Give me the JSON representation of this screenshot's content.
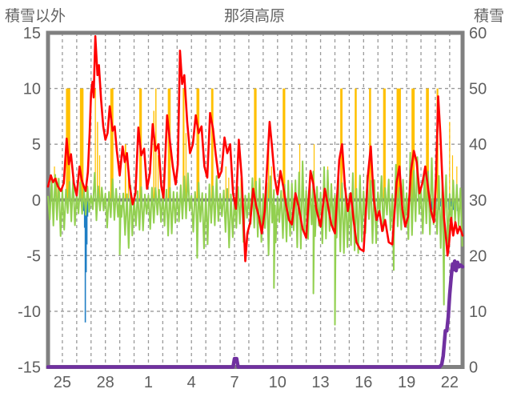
{
  "header": {
    "left_axis_title": "積雪以外",
    "title": "那須高原",
    "right_axis_title": "積雪"
  },
  "colors": {
    "red_line": "#FF0000",
    "green_line": "#92D050",
    "orange_bars": "#FFC000",
    "blue_bars": "#1F7EC4",
    "snow_depth_line": "#7030A0",
    "border": "#808080",
    "zero_line": "#808080",
    "grid": "#9A9A9A",
    "text": "#5F5F5F",
    "background": "#FFFFFF"
  },
  "chart_data": {
    "type": "line",
    "title": "那須高原",
    "left_axis": {
      "label": "積雪以外",
      "min": -15,
      "max": 15,
      "ticks": [
        15,
        10,
        5,
        0,
        -5,
        -10,
        -15
      ]
    },
    "right_axis": {
      "label": "積雪",
      "min": 0,
      "max": 60,
      "ticks": [
        60,
        50,
        40,
        30,
        20,
        10,
        0
      ]
    },
    "x_axis": {
      "tick_labels": [
        "25",
        "28",
        "1",
        "4",
        "7",
        "10",
        "13",
        "16",
        "19",
        "22"
      ],
      "tick_days": [
        1,
        4,
        7,
        10,
        13,
        16,
        19,
        22,
        25,
        28
      ],
      "span_days": 28.9,
      "gridline_every_day": true
    },
    "grid": "dashed gray: vertical each day, horizontal at ±5 and ±10 (left axis); solid gray zero line",
    "legend": "none",
    "series": [
      {
        "name": "red_line",
        "type": "line",
        "axis": "left",
        "color": "#FF0000",
        "points": [
          [
            0,
            1.2
          ],
          [
            0.2,
            2.2
          ],
          [
            0.35,
            1.6
          ],
          [
            0.5,
            1.9
          ],
          [
            0.7,
            1.2
          ],
          [
            0.9,
            0.8
          ],
          [
            1.1,
            1.5
          ],
          [
            1.3,
            5.5
          ],
          [
            1.45,
            3.2
          ],
          [
            1.6,
            4.1
          ],
          [
            1.8,
            1.5
          ],
          [
            2.0,
            0.4
          ],
          [
            2.2,
            3.0
          ],
          [
            2.35,
            1.8
          ],
          [
            2.5,
            1.2
          ],
          [
            2.62,
            0.8
          ],
          [
            2.78,
            2.5
          ],
          [
            2.9,
            6.0
          ],
          [
            3.0,
            9.6
          ],
          [
            3.1,
            10.6
          ],
          [
            3.18,
            9.2
          ],
          [
            3.3,
            14.7
          ],
          [
            3.45,
            11.2
          ],
          [
            3.55,
            12.1
          ],
          [
            3.7,
            9.0
          ],
          [
            3.85,
            6.6
          ],
          [
            4.0,
            5.4
          ],
          [
            4.15,
            6.0
          ],
          [
            4.3,
            8.4
          ],
          [
            4.5,
            6.2
          ],
          [
            4.65,
            6.6
          ],
          [
            4.8,
            4.4
          ],
          [
            5.0,
            2.2
          ],
          [
            5.2,
            4.8
          ],
          [
            5.35,
            3.4
          ],
          [
            5.5,
            4.2
          ],
          [
            5.7,
            1.2
          ],
          [
            5.9,
            -0.4
          ],
          [
            6.1,
            0.6
          ],
          [
            6.3,
            6.5
          ],
          [
            6.5,
            4.0
          ],
          [
            6.7,
            4.6
          ],
          [
            6.9,
            1.0
          ],
          [
            7.1,
            2.4
          ],
          [
            7.3,
            6.8
          ],
          [
            7.5,
            4.4
          ],
          [
            7.7,
            5.0
          ],
          [
            7.9,
            1.2
          ],
          [
            8.05,
            0.2
          ],
          [
            8.3,
            7.6
          ],
          [
            8.5,
            5.2
          ],
          [
            8.7,
            3.0
          ],
          [
            8.9,
            1.4
          ],
          [
            9.05,
            3.2
          ],
          [
            9.2,
            13.4
          ],
          [
            9.35,
            10.4
          ],
          [
            9.5,
            11.2
          ],
          [
            9.7,
            7.0
          ],
          [
            9.9,
            4.2
          ],
          [
            10.1,
            5.0
          ],
          [
            10.3,
            7.6
          ],
          [
            10.5,
            6.0
          ],
          [
            10.7,
            6.6
          ],
          [
            10.9,
            3.0
          ],
          [
            11.1,
            2.0
          ],
          [
            11.3,
            7.8
          ],
          [
            11.5,
            6.4
          ],
          [
            11.7,
            4.0
          ],
          [
            11.9,
            2.0
          ],
          [
            12.1,
            2.6
          ],
          [
            12.3,
            5.6
          ],
          [
            12.5,
            4.2
          ],
          [
            12.7,
            5.0
          ],
          [
            12.9,
            0.6
          ],
          [
            13.1,
            -0.8
          ],
          [
            13.3,
            5.4
          ],
          [
            13.5,
            2.0
          ],
          [
            13.75,
            -5.5
          ],
          [
            13.9,
            -3.0
          ],
          [
            14.1,
            -2.0
          ],
          [
            14.3,
            1.0
          ],
          [
            14.5,
            -0.5
          ],
          [
            14.7,
            -1.5
          ],
          [
            14.9,
            -3.0
          ],
          [
            15.1,
            -1.0
          ],
          [
            15.45,
            7.0
          ],
          [
            15.6,
            5.0
          ],
          [
            15.8,
            2.0
          ],
          [
            16.0,
            0.5
          ],
          [
            16.2,
            2.6
          ],
          [
            16.4,
            1.2
          ],
          [
            16.6,
            -0.5
          ],
          [
            16.8,
            -1.8
          ],
          [
            17.0,
            -2.2
          ],
          [
            17.25,
            0.6
          ],
          [
            17.5,
            -0.8
          ],
          [
            17.75,
            -2.6
          ],
          [
            18.0,
            -3.4
          ],
          [
            18.3,
            2.6
          ],
          [
            18.5,
            1.4
          ],
          [
            18.7,
            -0.8
          ],
          [
            19.0,
            -2.4
          ],
          [
            19.3,
            1.0
          ],
          [
            19.5,
            -0.4
          ],
          [
            19.75,
            -2.2
          ],
          [
            20.0,
            -3.0
          ],
          [
            20.3,
            3.6
          ],
          [
            20.5,
            5.0
          ],
          [
            20.7,
            1.2
          ],
          [
            20.9,
            -1.0
          ],
          [
            21.1,
            0.6
          ],
          [
            21.3,
            -1.8
          ],
          [
            21.5,
            -3.8
          ],
          [
            21.75,
            -4.4
          ],
          [
            22.0,
            -4.6
          ],
          [
            22.3,
            2.2
          ],
          [
            22.5,
            4.8
          ],
          [
            22.7,
            0.2
          ],
          [
            22.9,
            -1.8
          ],
          [
            23.1,
            -1.0
          ],
          [
            23.3,
            -2.8
          ],
          [
            23.5,
            -1.8
          ],
          [
            23.75,
            -3.8
          ],
          [
            24.0,
            -4.0
          ],
          [
            24.3,
            1.6
          ],
          [
            24.5,
            3.0
          ],
          [
            24.7,
            -0.8
          ],
          [
            24.9,
            -2.4
          ],
          [
            25.1,
            -1.5
          ],
          [
            25.3,
            2.6
          ],
          [
            25.5,
            4.4
          ],
          [
            25.7,
            3.4
          ],
          [
            25.9,
            0.6
          ],
          [
            26.1,
            1.5
          ],
          [
            26.3,
            3.0
          ],
          [
            26.5,
            1.0
          ],
          [
            26.7,
            -1.0
          ],
          [
            26.9,
            -2.0
          ],
          [
            27.05,
            2.0
          ],
          [
            27.2,
            9.3
          ],
          [
            27.35,
            6.0
          ],
          [
            27.5,
            1.5
          ],
          [
            27.6,
            -1.5
          ],
          [
            27.75,
            -3.5
          ],
          [
            27.85,
            -5.0
          ],
          [
            27.95,
            -4.0
          ],
          [
            28.1,
            -1.6
          ],
          [
            28.25,
            -3.2
          ],
          [
            28.4,
            -2.0
          ],
          [
            28.55,
            -3.0
          ],
          [
            28.7,
            -2.4
          ],
          [
            28.9,
            -3.2
          ]
        ]
      },
      {
        "name": "green_line",
        "type": "line",
        "axis": "left",
        "color": "#92D050",
        "envelope_per_day": [
          [
            -4.5,
            2.5
          ],
          [
            -3,
            2.5
          ],
          [
            -3.5,
            1.8
          ],
          [
            -2,
            2.8
          ],
          [
            -3,
            2.2
          ],
          [
            -4.9,
            1.5
          ],
          [
            -3,
            1.2
          ],
          [
            -4,
            1.5
          ],
          [
            -4,
            2.0
          ],
          [
            -3,
            2.5
          ],
          [
            -5.2,
            2.0
          ],
          [
            -4,
            2.2
          ],
          [
            -4.5,
            1.5
          ],
          [
            -4,
            1.2
          ],
          [
            -4,
            2.0
          ],
          [
            -5,
            2.5
          ],
          [
            -4,
            2.2
          ],
          [
            -4.5,
            4.2
          ],
          [
            -4,
            3.0
          ],
          [
            -5,
            3.0
          ],
          [
            -5.5,
            2.5
          ],
          [
            -5,
            3.0
          ],
          [
            -4,
            3.0
          ],
          [
            -4,
            2.5
          ],
          [
            -5,
            3.5
          ],
          [
            -4,
            4.4
          ],
          [
            -4,
            4.2
          ],
          [
            -5,
            3.0
          ],
          [
            -4.5,
            2.5
          ]
        ],
        "spikes": [
          [
            5.0,
            -4.9
          ],
          [
            10.4,
            -5.2
          ],
          [
            15.75,
            -7.9
          ],
          [
            18.5,
            -8.4
          ],
          [
            20.0,
            -11.2
          ],
          [
            24.1,
            -6.3
          ],
          [
            27.6,
            -9.4
          ]
        ]
      },
      {
        "name": "orange_bars",
        "type": "bar",
        "axis": "left",
        "color": "#FFC000",
        "baseline": 0,
        "bars": [
          [
            0.45,
            3,
            0.06
          ],
          [
            0.6,
            2,
            0.05
          ],
          [
            1.4,
            10,
            0.3
          ],
          [
            2.35,
            10,
            0.25
          ],
          [
            3.3,
            10,
            0.07
          ],
          [
            3.45,
            7,
            0.08
          ],
          [
            3.6,
            4,
            0.06
          ],
          [
            4.45,
            10,
            0.22
          ],
          [
            5.4,
            5,
            0.1
          ],
          [
            5.6,
            3,
            0.05
          ],
          [
            6.45,
            10,
            0.18
          ],
          [
            7.38,
            8,
            0.08
          ],
          [
            7.52,
            10,
            0.08
          ],
          [
            7.68,
            4,
            0.05
          ],
          [
            8.45,
            10,
            0.2
          ],
          [
            9.45,
            10,
            0.12
          ],
          [
            9.62,
            6,
            0.06
          ],
          [
            10.45,
            10,
            0.2
          ],
          [
            11.45,
            10,
            0.16
          ],
          [
            12.4,
            3,
            0.06
          ],
          [
            12.6,
            2,
            0.05
          ],
          [
            13.45,
            2,
            0.05
          ],
          [
            14.45,
            10,
            0.18
          ],
          [
            15.38,
            6,
            0.08
          ],
          [
            15.58,
            3,
            0.05
          ],
          [
            16.45,
            10,
            0.18
          ],
          [
            17.55,
            5,
            0.06
          ],
          [
            18.55,
            5,
            0.06
          ],
          [
            19.5,
            3,
            0.06
          ],
          [
            20.45,
            10,
            0.16
          ],
          [
            21.45,
            10,
            0.14
          ],
          [
            22.45,
            10,
            0.14
          ],
          [
            23.45,
            10,
            0.18
          ],
          [
            24.45,
            10,
            0.3
          ],
          [
            25.45,
            10,
            0.22
          ],
          [
            26.45,
            10,
            0.2
          ],
          [
            27.15,
            10,
            0.12
          ],
          [
            28.0,
            7,
            0.06
          ],
          [
            28.2,
            4,
            0.05
          ],
          [
            28.5,
            3,
            0.05
          ]
        ]
      },
      {
        "name": "blue_bars",
        "type": "bar",
        "axis": "left",
        "color": "#1F7EC4",
        "baseline": 0,
        "direction": "down",
        "bars": [
          [
            2.5,
            -1.0,
            0.05
          ],
          [
            2.55,
            -2.5,
            0.05
          ],
          [
            2.6,
            -11.0,
            0.06
          ],
          [
            2.66,
            -6.5,
            0.05
          ],
          [
            2.71,
            -4.0,
            0.05
          ],
          [
            2.76,
            -1.5,
            0.05
          ],
          [
            13.0,
            -0.8,
            0.05
          ],
          [
            13.08,
            -0.5,
            0.05
          ],
          [
            16.6,
            -0.5,
            0.05
          ],
          [
            16.7,
            -0.4,
            0.05
          ],
          [
            26.6,
            -0.7,
            0.1
          ],
          [
            26.75,
            -0.9,
            0.1
          ],
          [
            26.9,
            -0.6,
            0.1
          ],
          [
            27.05,
            -0.8,
            0.1
          ],
          [
            27.2,
            -0.9,
            0.1
          ],
          [
            27.35,
            -0.6,
            0.1
          ],
          [
            27.5,
            -0.8,
            0.1
          ],
          [
            27.65,
            -1.0,
            0.1
          ],
          [
            27.8,
            -0.7,
            0.1
          ],
          [
            27.95,
            -0.9,
            0.1
          ],
          [
            28.1,
            -0.6,
            0.1
          ],
          [
            28.25,
            -0.9,
            0.1
          ],
          [
            28.4,
            -0.7,
            0.1
          ],
          [
            28.55,
            -1.0,
            0.1
          ],
          [
            28.7,
            -0.8,
            0.1
          ]
        ]
      },
      {
        "name": "snow_depth_line",
        "type": "line",
        "axis": "right",
        "color": "#7030A0",
        "points": [
          [
            0,
            0
          ],
          [
            12.9,
            0
          ],
          [
            13.0,
            1.5
          ],
          [
            13.15,
            1.5
          ],
          [
            13.25,
            0
          ],
          [
            27.3,
            0
          ],
          [
            27.45,
            0.5
          ],
          [
            27.55,
            2
          ],
          [
            27.65,
            5
          ],
          [
            27.7,
            6.5
          ],
          [
            27.8,
            6.5
          ],
          [
            27.9,
            9
          ],
          [
            28.0,
            13
          ],
          [
            28.1,
            16
          ],
          [
            28.2,
            18.5
          ],
          [
            28.3,
            17.5
          ],
          [
            28.35,
            19
          ],
          [
            28.45,
            17.3
          ],
          [
            28.55,
            18.8
          ],
          [
            28.65,
            18
          ],
          [
            28.75,
            18.3
          ],
          [
            28.9,
            18
          ]
        ]
      }
    ]
  }
}
